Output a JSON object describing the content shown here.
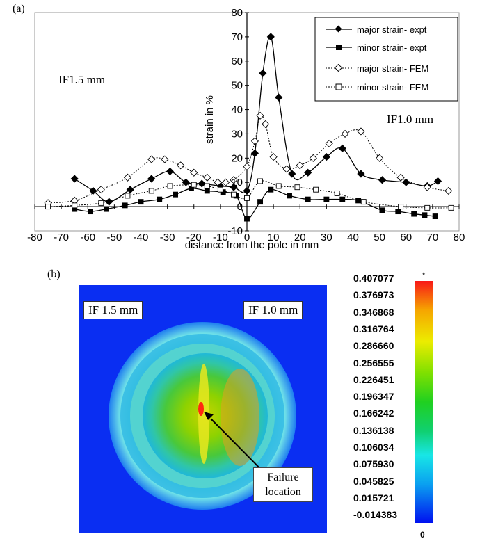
{
  "panel_a": {
    "label": "(a)",
    "annotations": {
      "left": "IF1.5 mm",
      "right": "IF1.0 mm"
    },
    "legend": {
      "major_expt": "major strain- expt",
      "minor_expt": "minor strain- expt",
      "major_fem": "major strain- FEM",
      "minor_fem": "minor strain- FEM"
    }
  },
  "panel_b": {
    "label": "(b)",
    "tag_left": "IF 1.5 mm",
    "tag_right": "IF 1.0 mm",
    "failure_line1": "Failure",
    "failure_line2": "location",
    "colorbar_top_marker": "*",
    "colorbar_bottom_marker": "0",
    "colorbar_labels": [
      "0.407077",
      "0.376973",
      "0.346868",
      "0.316764",
      "0.286660",
      "0.256555",
      "0.226451",
      "0.196347",
      "0.166242",
      "0.136138",
      "0.106034",
      "0.075930",
      "0.045825",
      "0.015721",
      "-0.014383"
    ]
  },
  "chart_data": {
    "type": "line",
    "xlabel": "distance from the pole in mm",
    "ylabel": "strain in %",
    "xlim": [
      -80,
      80
    ],
    "ylim": [
      -10,
      80
    ],
    "xticks": [
      -80,
      -70,
      -60,
      -50,
      -40,
      -30,
      -20,
      -10,
      0,
      10,
      20,
      30,
      40,
      50,
      60,
      70,
      80
    ],
    "yticks": [
      -10,
      0,
      10,
      20,
      30,
      40,
      50,
      60,
      70,
      80
    ],
    "legend_position": "top-right",
    "series": [
      {
        "name": "major strain- expt",
        "style": "solid",
        "marker": "diamond-filled",
        "x": [
          -65,
          -58,
          -52,
          -44,
          -36,
          -29,
          -23,
          -17,
          -10,
          -5,
          0,
          3,
          6,
          9,
          12,
          17,
          23,
          30,
          36,
          43,
          51,
          60,
          68,
          72
        ],
        "y": [
          11.5,
          6.5,
          2,
          7,
          11.5,
          14.5,
          10,
          9.5,
          8.5,
          8,
          6.5,
          22,
          55,
          70,
          45,
          13.5,
          14,
          20.5,
          24,
          13.5,
          11,
          10,
          8.5,
          10.5
        ]
      },
      {
        "name": "minor strain- expt",
        "style": "solid",
        "marker": "square-filled",
        "x": [
          -65,
          -59,
          -53,
          -46,
          -40,
          -33,
          -27,
          -21,
          -15,
          -9,
          -4,
          0,
          5,
          9,
          16,
          23,
          30,
          36,
          42,
          51,
          57,
          63,
          67,
          71
        ],
        "y": [
          -1,
          -2,
          -1,
          0.5,
          2,
          3,
          5,
          7.5,
          6.5,
          6,
          4.5,
          -5,
          2,
          7,
          4.5,
          3,
          3,
          3,
          2.5,
          -1.5,
          -2,
          -3,
          -3.5,
          -4
        ]
      },
      {
        "name": "major strain- FEM",
        "style": "dotted",
        "marker": "diamond-open",
        "x": [
          -75,
          -65,
          -55,
          -45,
          -36,
          -31,
          -25,
          -20,
          -15,
          -11,
          -8,
          -5,
          0,
          3,
          5,
          7,
          10,
          15,
          20,
          25,
          31,
          37,
          43,
          50,
          58,
          68,
          76
        ],
        "y": [
          1.5,
          2.5,
          7,
          12,
          19.5,
          19.5,
          17,
          14,
          12,
          10,
          10,
          11,
          16.5,
          27,
          37.5,
          34,
          20.5,
          15.5,
          17,
          20,
          26,
          30,
          31,
          20,
          12,
          8,
          6.5
        ]
      },
      {
        "name": "minor strain- FEM",
        "style": "dotted",
        "marker": "square-open",
        "x": [
          -75,
          -65,
          -55,
          -45,
          -36,
          -29,
          -20,
          -15,
          -10,
          -5,
          0,
          5,
          12,
          19,
          26,
          34,
          44,
          58,
          68,
          77
        ],
        "y": [
          0,
          0.5,
          1.5,
          4.5,
          6.5,
          8.5,
          9,
          8.5,
          7,
          5,
          3.5,
          10.5,
          8.5,
          8,
          7,
          5.5,
          2,
          0,
          -0.5,
          -0.5
        ]
      }
    ]
  }
}
